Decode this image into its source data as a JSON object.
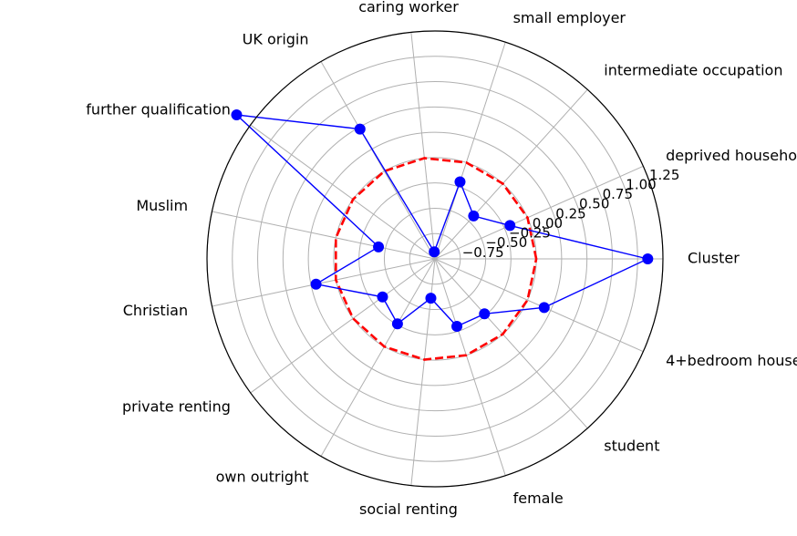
{
  "chart_data": {
    "type": "radar",
    "categories": [
      "Cluster",
      "deprived household",
      "intermediate occupation",
      "small employer",
      "caring worker",
      "UK origin",
      "further qualification",
      "Muslim",
      "Christian",
      "private renting",
      "own outright",
      "social renting",
      "female",
      "student",
      "4+bedroom house"
    ],
    "rlim": [
      -1.0,
      1.25
    ],
    "rticks": [
      -0.75,
      -0.5,
      -0.25,
      0.0,
      0.25,
      0.5,
      0.75,
      1.0,
      1.25
    ],
    "rtick_labels": [
      "−0.75",
      "−0.50",
      "−0.25",
      "0.00",
      "0.25",
      "0.50",
      "0.75",
      "1.00",
      "1.25"
    ],
    "series": [
      {
        "values": [
          1.1,
          -0.19,
          -0.43,
          -0.2,
          -0.93,
          0.48,
          1.42,
          -0.43,
          0.2,
          -0.36,
          -0.26,
          -0.61,
          -0.3,
          -0.27,
          0.18
        ],
        "color": "#0000ff",
        "marker": "circle"
      },
      {
        "values": [
          0.0,
          0.0,
          0.0,
          0.0,
          0.0,
          0.0,
          0.0,
          0.0,
          0.0,
          0.0,
          0.0,
          0.0,
          0.0,
          0.0,
          0.0
        ],
        "color": "#ff0000",
        "style": "dashed"
      }
    ],
    "grid": true
  }
}
